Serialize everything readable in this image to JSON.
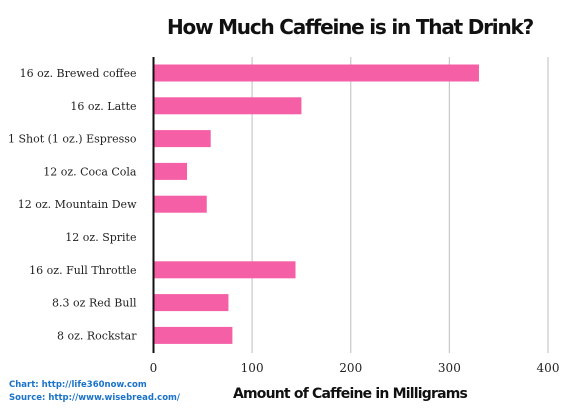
{
  "chart_data": {
    "type": "bar",
    "orientation": "horizontal",
    "title": "How Much Caffeine is in That Drink?",
    "xlabel": "Amount of Caffeine in Milligrams",
    "ylabel": "",
    "categories": [
      "16 oz. Brewed coffee",
      "16 oz. Latte",
      "1 Shot (1 oz.) Espresso",
      "12 oz. Coca Cola",
      "12 oz. Mountain Dew",
      "12 oz. Sprite",
      "16 oz. Full Throttle",
      "8.3 oz Red Bull",
      "8 oz. Rockstar"
    ],
    "values": [
      330,
      150,
      58,
      34,
      54,
      0,
      144,
      76,
      80
    ],
    "xlim": [
      0,
      400
    ],
    "xticks": [
      0,
      100,
      200,
      300,
      400
    ],
    "grid": true,
    "bar_color": "#f55fa6",
    "grid_color": "#c9c9c9",
    "axis_color": "#111111"
  },
  "credits": {
    "chart": "Chart: http://life360now.com",
    "source": "Source: http://www.wisebread.com/"
  },
  "colors": {
    "credit_text": "#1a73c8"
  }
}
